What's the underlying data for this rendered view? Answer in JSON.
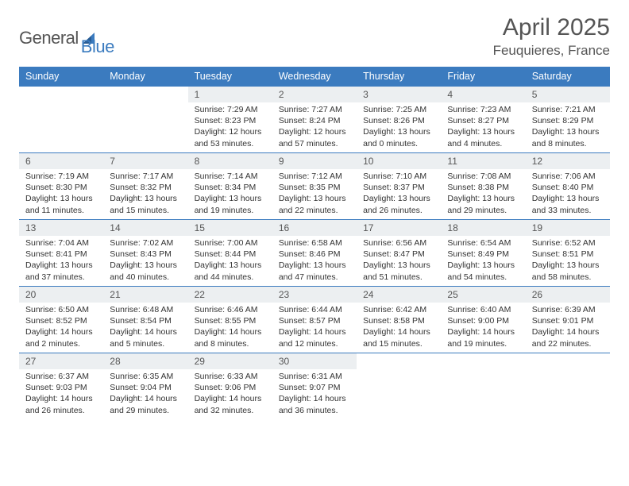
{
  "logo": {
    "word1": "General",
    "word2": "Blue"
  },
  "title": {
    "month": "April 2025",
    "location": "Feuquieres, France"
  },
  "weekdays": [
    "Sunday",
    "Monday",
    "Tuesday",
    "Wednesday",
    "Thursday",
    "Friday",
    "Saturday"
  ],
  "colors": {
    "header_bg": "#3b7bbf",
    "header_text": "#ffffff",
    "daynum_bg": "#eceff1",
    "rule": "#3b7bbf",
    "text": "#333333",
    "muted": "#555555",
    "page_bg": "#ffffff"
  },
  "weeks": [
    [
      {
        "empty": true
      },
      {
        "empty": true
      },
      {
        "num": "1",
        "sunrise": "Sunrise: 7:29 AM",
        "sunset": "Sunset: 8:23 PM",
        "daylight": "Daylight: 12 hours and 53 minutes."
      },
      {
        "num": "2",
        "sunrise": "Sunrise: 7:27 AM",
        "sunset": "Sunset: 8:24 PM",
        "daylight": "Daylight: 12 hours and 57 minutes."
      },
      {
        "num": "3",
        "sunrise": "Sunrise: 7:25 AM",
        "sunset": "Sunset: 8:26 PM",
        "daylight": "Daylight: 13 hours and 0 minutes."
      },
      {
        "num": "4",
        "sunrise": "Sunrise: 7:23 AM",
        "sunset": "Sunset: 8:27 PM",
        "daylight": "Daylight: 13 hours and 4 minutes."
      },
      {
        "num": "5",
        "sunrise": "Sunrise: 7:21 AM",
        "sunset": "Sunset: 8:29 PM",
        "daylight": "Daylight: 13 hours and 8 minutes."
      }
    ],
    [
      {
        "num": "6",
        "sunrise": "Sunrise: 7:19 AM",
        "sunset": "Sunset: 8:30 PM",
        "daylight": "Daylight: 13 hours and 11 minutes."
      },
      {
        "num": "7",
        "sunrise": "Sunrise: 7:17 AM",
        "sunset": "Sunset: 8:32 PM",
        "daylight": "Daylight: 13 hours and 15 minutes."
      },
      {
        "num": "8",
        "sunrise": "Sunrise: 7:14 AM",
        "sunset": "Sunset: 8:34 PM",
        "daylight": "Daylight: 13 hours and 19 minutes."
      },
      {
        "num": "9",
        "sunrise": "Sunrise: 7:12 AM",
        "sunset": "Sunset: 8:35 PM",
        "daylight": "Daylight: 13 hours and 22 minutes."
      },
      {
        "num": "10",
        "sunrise": "Sunrise: 7:10 AM",
        "sunset": "Sunset: 8:37 PM",
        "daylight": "Daylight: 13 hours and 26 minutes."
      },
      {
        "num": "11",
        "sunrise": "Sunrise: 7:08 AM",
        "sunset": "Sunset: 8:38 PM",
        "daylight": "Daylight: 13 hours and 29 minutes."
      },
      {
        "num": "12",
        "sunrise": "Sunrise: 7:06 AM",
        "sunset": "Sunset: 8:40 PM",
        "daylight": "Daylight: 13 hours and 33 minutes."
      }
    ],
    [
      {
        "num": "13",
        "sunrise": "Sunrise: 7:04 AM",
        "sunset": "Sunset: 8:41 PM",
        "daylight": "Daylight: 13 hours and 37 minutes."
      },
      {
        "num": "14",
        "sunrise": "Sunrise: 7:02 AM",
        "sunset": "Sunset: 8:43 PM",
        "daylight": "Daylight: 13 hours and 40 minutes."
      },
      {
        "num": "15",
        "sunrise": "Sunrise: 7:00 AM",
        "sunset": "Sunset: 8:44 PM",
        "daylight": "Daylight: 13 hours and 44 minutes."
      },
      {
        "num": "16",
        "sunrise": "Sunrise: 6:58 AM",
        "sunset": "Sunset: 8:46 PM",
        "daylight": "Daylight: 13 hours and 47 minutes."
      },
      {
        "num": "17",
        "sunrise": "Sunrise: 6:56 AM",
        "sunset": "Sunset: 8:47 PM",
        "daylight": "Daylight: 13 hours and 51 minutes."
      },
      {
        "num": "18",
        "sunrise": "Sunrise: 6:54 AM",
        "sunset": "Sunset: 8:49 PM",
        "daylight": "Daylight: 13 hours and 54 minutes."
      },
      {
        "num": "19",
        "sunrise": "Sunrise: 6:52 AM",
        "sunset": "Sunset: 8:51 PM",
        "daylight": "Daylight: 13 hours and 58 minutes."
      }
    ],
    [
      {
        "num": "20",
        "sunrise": "Sunrise: 6:50 AM",
        "sunset": "Sunset: 8:52 PM",
        "daylight": "Daylight: 14 hours and 2 minutes."
      },
      {
        "num": "21",
        "sunrise": "Sunrise: 6:48 AM",
        "sunset": "Sunset: 8:54 PM",
        "daylight": "Daylight: 14 hours and 5 minutes."
      },
      {
        "num": "22",
        "sunrise": "Sunrise: 6:46 AM",
        "sunset": "Sunset: 8:55 PM",
        "daylight": "Daylight: 14 hours and 8 minutes."
      },
      {
        "num": "23",
        "sunrise": "Sunrise: 6:44 AM",
        "sunset": "Sunset: 8:57 PM",
        "daylight": "Daylight: 14 hours and 12 minutes."
      },
      {
        "num": "24",
        "sunrise": "Sunrise: 6:42 AM",
        "sunset": "Sunset: 8:58 PM",
        "daylight": "Daylight: 14 hours and 15 minutes."
      },
      {
        "num": "25",
        "sunrise": "Sunrise: 6:40 AM",
        "sunset": "Sunset: 9:00 PM",
        "daylight": "Daylight: 14 hours and 19 minutes."
      },
      {
        "num": "26",
        "sunrise": "Sunrise: 6:39 AM",
        "sunset": "Sunset: 9:01 PM",
        "daylight": "Daylight: 14 hours and 22 minutes."
      }
    ],
    [
      {
        "num": "27",
        "sunrise": "Sunrise: 6:37 AM",
        "sunset": "Sunset: 9:03 PM",
        "daylight": "Daylight: 14 hours and 26 minutes."
      },
      {
        "num": "28",
        "sunrise": "Sunrise: 6:35 AM",
        "sunset": "Sunset: 9:04 PM",
        "daylight": "Daylight: 14 hours and 29 minutes."
      },
      {
        "num": "29",
        "sunrise": "Sunrise: 6:33 AM",
        "sunset": "Sunset: 9:06 PM",
        "daylight": "Daylight: 14 hours and 32 minutes."
      },
      {
        "num": "30",
        "sunrise": "Sunrise: 6:31 AM",
        "sunset": "Sunset: 9:07 PM",
        "daylight": "Daylight: 14 hours and 36 minutes."
      },
      {
        "empty": true
      },
      {
        "empty": true
      },
      {
        "empty": true
      }
    ]
  ]
}
